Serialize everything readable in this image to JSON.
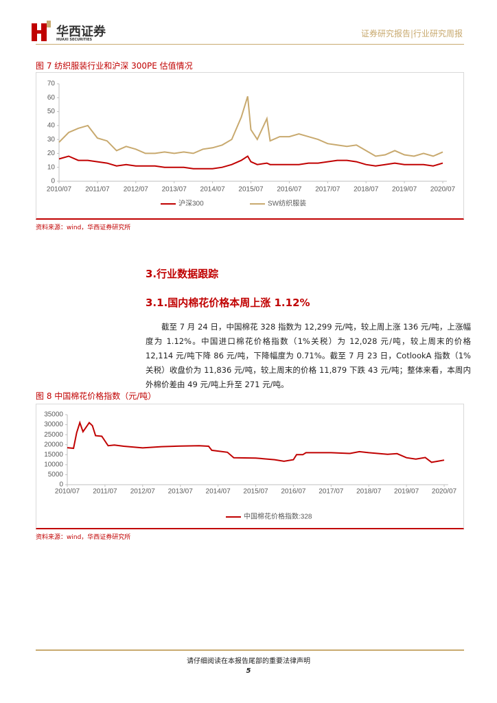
{
  "header": {
    "logo": "华西证券",
    "logo_en": "HUAXI SECURITIES",
    "report_type": "证券研究报告|行业研究周报"
  },
  "sources": [
    "资料来源：wind，华西证券研究所",
    "资料来源：wind，华西证券研究所"
  ],
  "section": {
    "title": "3.行业数据跟踪",
    "subtitle": "3.1.国内棉花价格本周上涨 1.12%",
    "paragraph": "截至 7 月 24 日，中国棉花 328 指数为 12,299 元/吨，较上周上涨 136 元/吨，上涨幅度为 1.12%。中国进口棉花价格指数（1%关税）为 12,028 元/吨，较上周末的价格 12,114 元/吨下降 86 元/吨，下降幅度为 0.71%。截至 7 月 23 日，CotlookA 指数（1%关税）收盘价为 11,836 元/吨，较上周末的价格 11,879 下跌 43 元/吨；整体来看，本周内外棉价差由 49 元/吨上升至 271 元/吨。"
  },
  "footer": {
    "notice": "请仔细阅读在本报告尾部的重要法律声明",
    "page": "5"
  },
  "chart_data": [
    {
      "type": "line",
      "title": "图 7 纺织服装行业和沪深 300PE 估值情况",
      "x": [
        "2010/07",
        "2010/10",
        "2011/01",
        "2011/04",
        "2011/07",
        "2011/10",
        "2012/01",
        "2012/04",
        "2012/07",
        "2012/10",
        "2013/01",
        "2013/04",
        "2013/07",
        "2013/10",
        "2014/01",
        "2014/04",
        "2014/07",
        "2014/10",
        "2015/01",
        "2015/04",
        "2015/06",
        "2015/07",
        "2015/09",
        "2015/12",
        "2016/01",
        "2016/04",
        "2016/07",
        "2016/10",
        "2017/01",
        "2017/04",
        "2017/07",
        "2017/10",
        "2018/01",
        "2018/04",
        "2018/07",
        "2018/10",
        "2019/01",
        "2019/04",
        "2019/07",
        "2019/10",
        "2020/01",
        "2020/04",
        "2020/07"
      ],
      "series": [
        {
          "name": "沪深300",
          "color": "#c00000",
          "values": [
            16,
            18,
            15,
            15,
            14,
            13,
            11,
            12,
            11,
            11,
            11,
            10,
            10,
            10,
            9,
            9,
            9,
            10,
            12,
            15,
            18,
            14,
            12,
            13,
            12,
            12,
            12,
            12,
            13,
            13,
            14,
            15,
            15,
            14,
            12,
            11,
            12,
            13,
            12,
            12,
            12,
            11,
            13
          ]
        },
        {
          "name": "SW纺织服装",
          "color": "#c8a96e",
          "values": [
            28,
            35,
            38,
            40,
            31,
            29,
            22,
            25,
            23,
            20,
            20,
            21,
            20,
            21,
            20,
            23,
            24,
            26,
            30,
            46,
            61,
            37,
            30,
            45,
            29,
            32,
            32,
            34,
            32,
            30,
            27,
            26,
            25,
            26,
            22,
            18,
            19,
            22,
            19,
            18,
            20,
            18,
            21
          ]
        }
      ],
      "xlim": [
        "2010/07",
        "2020/07"
      ],
      "xticks": [
        "2010/07",
        "2011/07",
        "2012/07",
        "2013/07",
        "2014/07",
        "2015/07",
        "2016/07",
        "2017/07",
        "2018/07",
        "2019/07",
        "2020/07"
      ],
      "ylim": [
        0,
        70
      ],
      "yticks": [
        0,
        10,
        20,
        30,
        40,
        50,
        60,
        70
      ]
    },
    {
      "type": "line",
      "title": "图 8 中国棉花价格指数（元/吨）",
      "x": [
        "2010/07",
        "2010/09",
        "2010/10",
        "2010/11",
        "2010/12",
        "2011/02",
        "2011/03",
        "2011/04",
        "2011/06",
        "2011/08",
        "2011/10",
        "2012/01",
        "2012/07",
        "2013/01",
        "2013/07",
        "2014/01",
        "2014/04",
        "2014/05",
        "2014/10",
        "2014/12",
        "2015/07",
        "2016/01",
        "2016/04",
        "2016/07",
        "2016/08",
        "2016/10",
        "2016/11",
        "2017/07",
        "2018/01",
        "2018/04",
        "2018/07",
        "2019/01",
        "2019/04",
        "2019/07",
        "2019/10",
        "2020/01",
        "2020/03",
        "2020/07"
      ],
      "series": [
        {
          "name": "中国棉花价格指数:328",
          "color": "#c00000",
          "values": [
            18500,
            18200,
            26000,
            31000,
            26500,
            31000,
            29500,
            24500,
            24200,
            19500,
            19800,
            19200,
            18400,
            19000,
            19300,
            19500,
            19200,
            17200,
            16200,
            13500,
            13300,
            12500,
            11700,
            12500,
            15000,
            15000,
            16000,
            16000,
            15600,
            16500,
            16000,
            15200,
            15500,
            13500,
            12800,
            13600,
            11200,
            12299
          ]
        }
      ],
      "xlim": [
        "2010/07",
        "2020/07"
      ],
      "xticks": [
        "2010/07",
        "2011/07",
        "2012/07",
        "2013/07",
        "2014/07",
        "2015/07",
        "2016/07",
        "2017/07",
        "2018/07",
        "2019/07",
        "2020/07"
      ],
      "ylim": [
        0,
        35000
      ],
      "yticks": [
        0,
        5000,
        10000,
        15000,
        20000,
        25000,
        30000,
        35000
      ]
    }
  ]
}
